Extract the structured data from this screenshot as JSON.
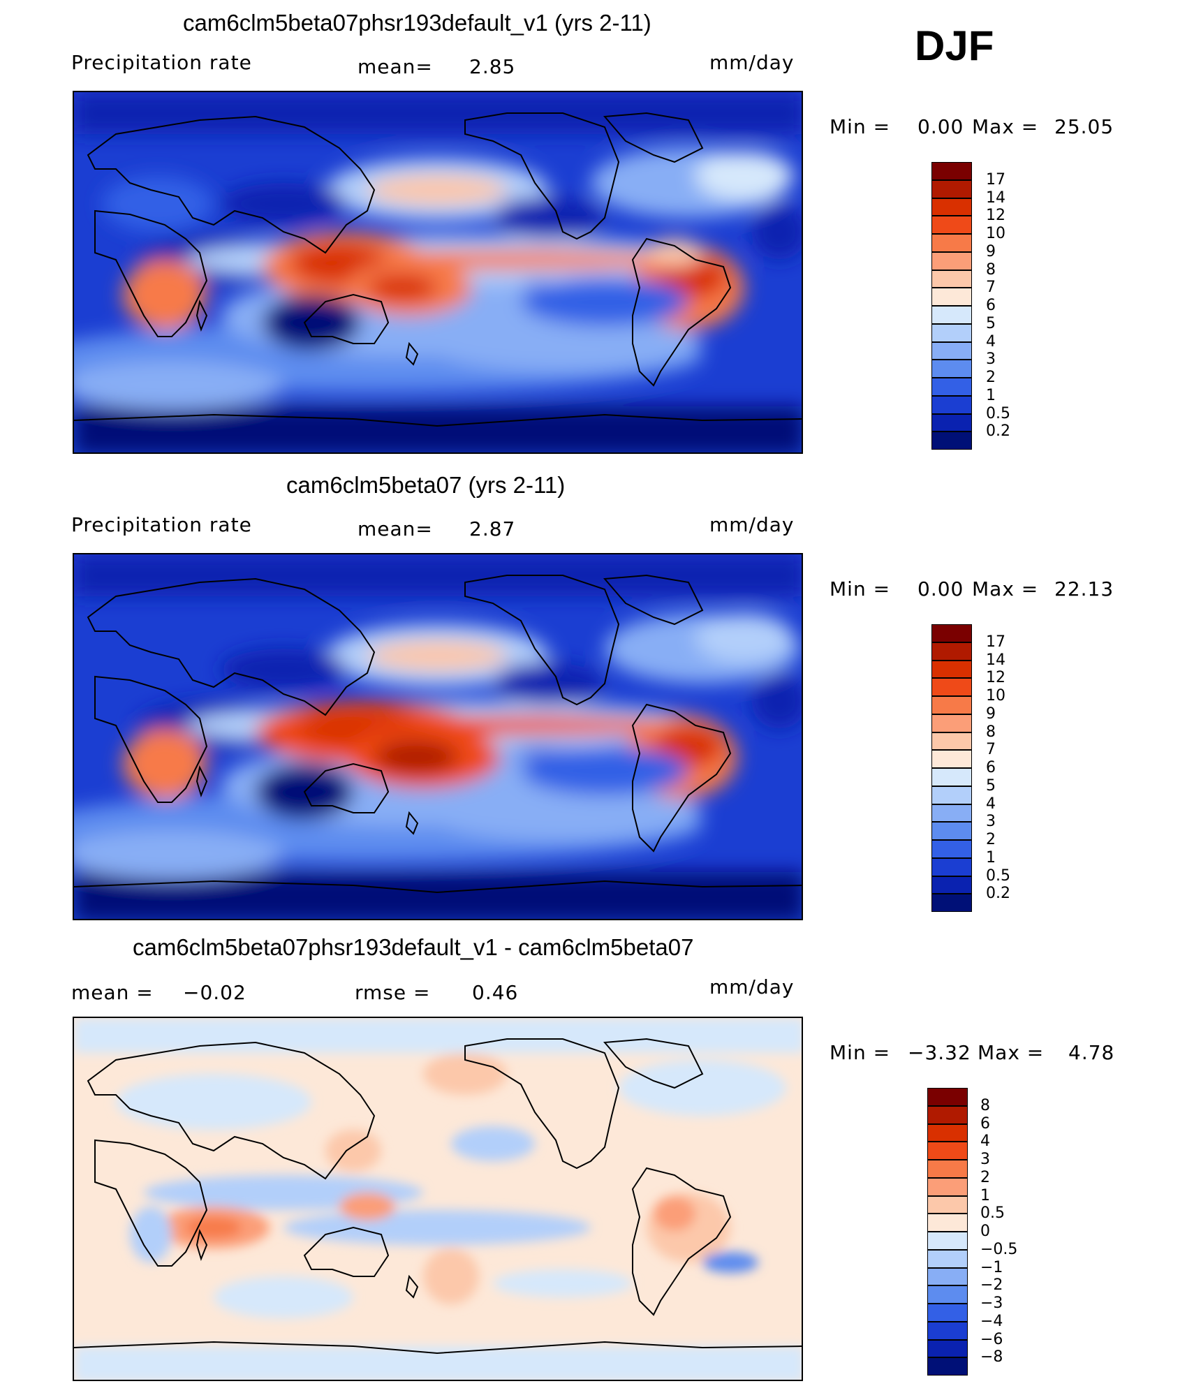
{
  "season": "DJF",
  "panels": [
    {
      "id": "test",
      "title": "cam6clm5beta07phsr193default_v1 (yrs 2-11)",
      "left_label": "Precipitation rate",
      "stat1_label": "mean=",
      "stat1_value": "2.85",
      "stat2_label": "",
      "stat2_value": "",
      "units": "mm/day",
      "min_label": "Min =",
      "min_value": "0.00",
      "max_label": "Max =",
      "max_value": "25.05",
      "colorbar_levels": [
        "17",
        "14",
        "12",
        "10",
        "9",
        "8",
        "7",
        "6",
        "5",
        "4",
        "3",
        "2",
        "1",
        "0.5",
        "0.2"
      ],
      "colorbar_colors": [
        "#7a0000",
        "#b01a00",
        "#d93000",
        "#ef4a18",
        "#f77a48",
        "#fb9e78",
        "#fcc8aa",
        "#fde8d8",
        "#d6e8fb",
        "#b2cffa",
        "#88aef5",
        "#5d8cef",
        "#3360e6",
        "#1b3ed2",
        "#0a22b0",
        "#001077"
      ]
    },
    {
      "id": "control",
      "title": "cam6clm5beta07 (yrs 2-11)",
      "left_label": "Precipitation rate",
      "stat1_label": "mean=",
      "stat1_value": "2.87",
      "stat2_label": "",
      "stat2_value": "",
      "units": "mm/day",
      "min_label": "Min =",
      "min_value": "0.00",
      "max_label": "Max =",
      "max_value": "22.13",
      "colorbar_levels": [
        "17",
        "14",
        "12",
        "10",
        "9",
        "8",
        "7",
        "6",
        "5",
        "4",
        "3",
        "2",
        "1",
        "0.5",
        "0.2"
      ],
      "colorbar_colors": [
        "#7a0000",
        "#b01a00",
        "#d93000",
        "#ef4a18",
        "#f77a48",
        "#fb9e78",
        "#fcc8aa",
        "#fde8d8",
        "#d6e8fb",
        "#b2cffa",
        "#88aef5",
        "#5d8cef",
        "#3360e6",
        "#1b3ed2",
        "#0a22b0",
        "#001077"
      ]
    },
    {
      "id": "difference",
      "title": "cam6clm5beta07phsr193default_v1 - cam6clm5beta07",
      "left_label": "",
      "stat1_label": "mean =",
      "stat1_value": "−0.02",
      "stat2_label": "rmse =",
      "stat2_value": "0.46",
      "units": "mm/day",
      "min_label": "Min =",
      "min_value": "−3.32",
      "max_label": "Max =",
      "max_value": "4.78",
      "colorbar_levels": [
        "8",
        "6",
        "4",
        "3",
        "2",
        "1",
        "0.5",
        "0",
        "−0.5",
        "−1",
        "−2",
        "−3",
        "−4",
        "−6",
        "−8"
      ],
      "colorbar_colors": [
        "#7a0000",
        "#b01a00",
        "#d93000",
        "#ef4a18",
        "#f77a48",
        "#fb9e78",
        "#fcc8aa",
        "#fde8d8",
        "#d6e8fb",
        "#b2cffa",
        "#88aef5",
        "#5d8cef",
        "#3360e6",
        "#1b3ed2",
        "#0a22b0",
        "#001077"
      ]
    }
  ]
}
